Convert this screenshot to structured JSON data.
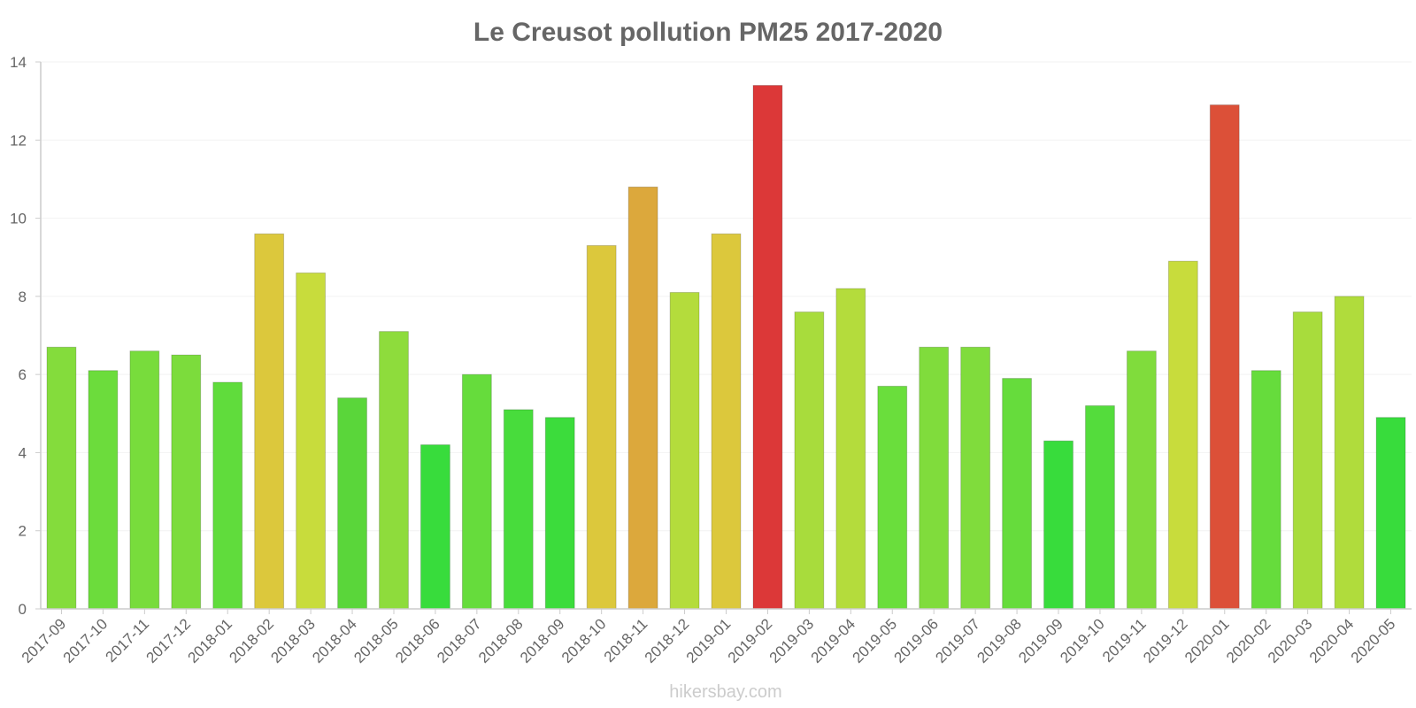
{
  "chart_data": {
    "type": "bar",
    "title": "Le Creusot pollution PM25 2017-2020",
    "xlabel": "",
    "ylabel": "",
    "ylim": [
      0,
      14
    ],
    "yticks": [
      "0",
      "2",
      "4",
      "6",
      "8",
      "10",
      "12",
      "14"
    ],
    "categories": [
      "2017-09",
      "2017-10",
      "2017-11",
      "2017-12",
      "2018-01",
      "2018-02",
      "2018-03",
      "2018-04",
      "2018-05",
      "2018-06",
      "2018-07",
      "2018-08",
      "2018-09",
      "2018-10",
      "2018-11",
      "2018-12",
      "2019-01",
      "2019-02",
      "2019-03",
      "2019-04",
      "2019-05",
      "2019-06",
      "2019-07",
      "2019-08",
      "2019-09",
      "2019-10",
      "2019-11",
      "2019-12",
      "2020-01",
      "2020-02",
      "2020-03",
      "2020-04",
      "2020-05"
    ],
    "values": [
      6.7,
      6.1,
      6.6,
      6.5,
      5.8,
      9.6,
      8.6,
      5.4,
      7.1,
      4.2,
      6.0,
      5.1,
      4.9,
      9.3,
      10.8,
      8.1,
      9.6,
      13.4,
      7.6,
      8.2,
      5.7,
      6.7,
      6.7,
      5.9,
      4.3,
      5.2,
      6.6,
      8.9,
      12.9,
      6.1,
      7.6,
      8.0,
      4.9
    ],
    "colors": [
      "#84dc3c",
      "#6cdc3c",
      "#78dc3c",
      "#7cdc3c",
      "#60dc3c",
      "#dcc83c",
      "#c8dc3c",
      "#5ad63a",
      "#8edc3c",
      "#38dc3c",
      "#66dc3c",
      "#48dc3c",
      "#3cdc3c",
      "#dcc83c",
      "#dca83c",
      "#b4dc3c",
      "#dcc83c",
      "#dc3838",
      "#a8dc3c",
      "#b4dc3c",
      "#6ade3c",
      "#80dc3c",
      "#80dc3c",
      "#66dc3c",
      "#38dc3c",
      "#54dc3c",
      "#80dc3c",
      "#c8dc3c",
      "#dc5038",
      "#66dc3c",
      "#a8dc3c",
      "#b0dc3c",
      "#38dc3c"
    ],
    "grid": true,
    "legend": "none"
  },
  "watermark": "hikersbay.com"
}
